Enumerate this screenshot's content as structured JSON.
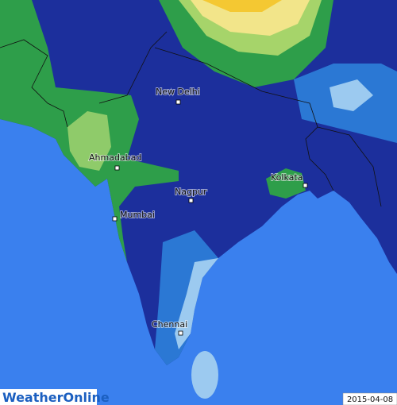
{
  "map": {
    "cities": [
      "New Delhi",
      "Ahmadabad",
      "Kolkata",
      "Nagpur",
      "Mumbai",
      "Chennai"
    ]
  },
  "logo": "WeatherOnline",
  "date": "2015-04-08"
}
